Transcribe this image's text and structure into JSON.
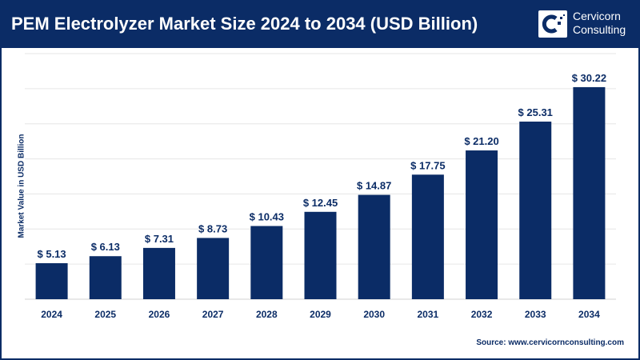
{
  "header": {
    "title": "PEM Electrolyzer Market Size 2024 to 2034 (USD Billion)",
    "logo_text_line1": "Cervicorn",
    "logo_text_line2": "Consulting"
  },
  "source": "Source: www.cervicornconsulting.com",
  "colors": {
    "bar": "#0b2c66",
    "header": "#0b2c66",
    "grid": "#e6e6e6"
  },
  "chart_data": {
    "type": "bar",
    "title": "PEM Electrolyzer Market Size 2024 to 2034 (USD Billion)",
    "ylabel": "Market Value in USD Billion",
    "xlabel": "",
    "categories": [
      "2024",
      "2025",
      "2026",
      "2027",
      "2028",
      "2029",
      "2030",
      "2031",
      "2032",
      "2033",
      "2034"
    ],
    "values": [
      5.13,
      6.13,
      7.31,
      8.73,
      10.43,
      12.45,
      14.87,
      17.75,
      21.2,
      25.31,
      30.22
    ],
    "data_labels": [
      "$ 5.13",
      "$ 6.13",
      "$ 7.31",
      "$ 8.73",
      "$ 10.43",
      "$ 12.45",
      "$ 14.87",
      "$ 17.75",
      "$ 21.20",
      "$ 25.31",
      "$ 30.22"
    ],
    "ylim": [
      0,
      35
    ],
    "grid": true,
    "y_tick_labels_shown": false
  }
}
